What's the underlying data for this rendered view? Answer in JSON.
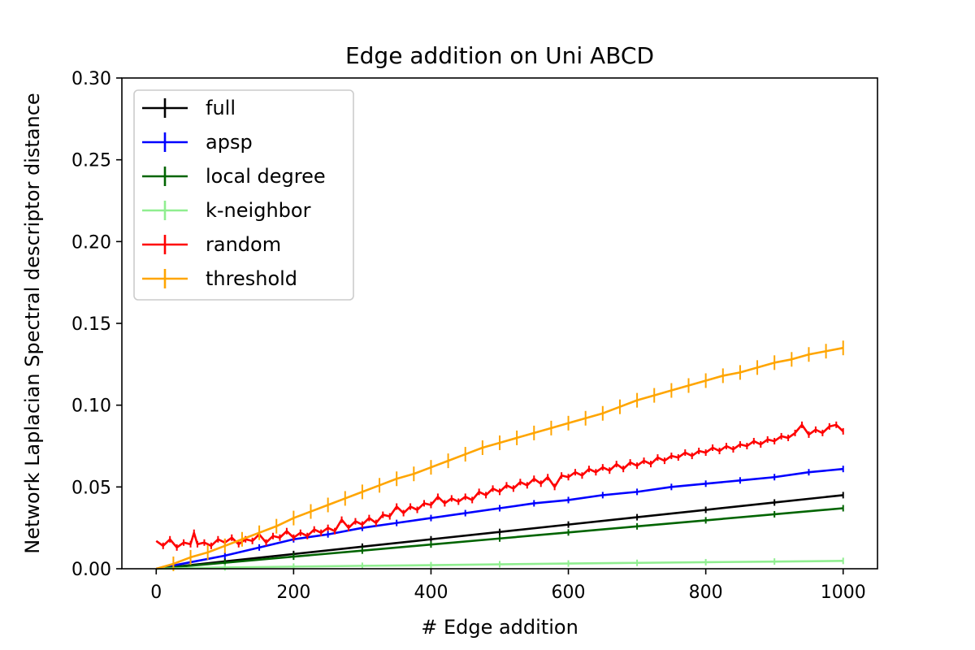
{
  "chart_data": {
    "type": "line",
    "title": "Edge addition on Uni ABCD",
    "xlabel": "# Edge addition",
    "ylabel": "Network Laplacian Spectral descriptor distance",
    "xlim": [
      -50,
      1050
    ],
    "ylim": [
      0,
      0.3
    ],
    "xticks": [
      0,
      200,
      400,
      600,
      800,
      1000
    ],
    "yticks": [
      0,
      0.05,
      0.1,
      0.15,
      0.2,
      0.25,
      0.3
    ],
    "xtick_labels": [
      "0",
      "200",
      "400",
      "600",
      "800",
      "1000"
    ],
    "ytick_labels": [
      "0.00",
      "0.05",
      "0.10",
      "0.15",
      "0.20",
      "0.25",
      "0.30"
    ],
    "grid": false,
    "legend": "top-left",
    "series": [
      {
        "name": "full",
        "color": "#000000",
        "errorbars": "small",
        "points": [
          [
            0,
            0
          ],
          [
            100,
            0.0045
          ],
          [
            200,
            0.009
          ],
          [
            300,
            0.0135
          ],
          [
            400,
            0.018
          ],
          [
            500,
            0.0225
          ],
          [
            600,
            0.027
          ],
          [
            700,
            0.0315
          ],
          [
            800,
            0.036
          ],
          [
            900,
            0.0405
          ],
          [
            1000,
            0.045
          ]
        ]
      },
      {
        "name": "apsp",
        "color": "#0000ff",
        "errorbars": "small",
        "points": [
          [
            0,
            0
          ],
          [
            50,
            0.004
          ],
          [
            100,
            0.008
          ],
          [
            150,
            0.013
          ],
          [
            200,
            0.018
          ],
          [
            250,
            0.021
          ],
          [
            300,
            0.025
          ],
          [
            350,
            0.028
          ],
          [
            400,
            0.031
          ],
          [
            450,
            0.034
          ],
          [
            500,
            0.037
          ],
          [
            550,
            0.04
          ],
          [
            600,
            0.042
          ],
          [
            650,
            0.045
          ],
          [
            700,
            0.047
          ],
          [
            750,
            0.05
          ],
          [
            800,
            0.052
          ],
          [
            850,
            0.054
          ],
          [
            900,
            0.056
          ],
          [
            950,
            0.059
          ],
          [
            1000,
            0.061
          ]
        ]
      },
      {
        "name": "local degree",
        "color": "#006400",
        "errorbars": "small",
        "points": [
          [
            0,
            0
          ],
          [
            100,
            0.0037
          ],
          [
            200,
            0.0074
          ],
          [
            300,
            0.0111
          ],
          [
            400,
            0.0148
          ],
          [
            500,
            0.0185
          ],
          [
            600,
            0.0222
          ],
          [
            700,
            0.0259
          ],
          [
            800,
            0.0296
          ],
          [
            900,
            0.0333
          ],
          [
            1000,
            0.037
          ]
        ]
      },
      {
        "name": "k-neighbor",
        "color": "#90ee90",
        "errorbars": "small",
        "points": [
          [
            0,
            0
          ],
          [
            100,
            0.0008
          ],
          [
            200,
            0.0013
          ],
          [
            300,
            0.0018
          ],
          [
            400,
            0.0022
          ],
          [
            500,
            0.0027
          ],
          [
            600,
            0.0032
          ],
          [
            700,
            0.0036
          ],
          [
            800,
            0.004
          ],
          [
            900,
            0.0044
          ],
          [
            1000,
            0.0048
          ]
        ]
      },
      {
        "name": "random",
        "color": "#ff0000",
        "errorbars": "small",
        "points": [
          [
            0,
            0.017
          ],
          [
            10,
            0.014
          ],
          [
            20,
            0.018
          ],
          [
            30,
            0.013
          ],
          [
            40,
            0.016
          ],
          [
            50,
            0.015
          ],
          [
            55,
            0.022
          ],
          [
            60,
            0.015
          ],
          [
            70,
            0.016
          ],
          [
            80,
            0.014
          ],
          [
            90,
            0.018
          ],
          [
            100,
            0.016
          ],
          [
            110,
            0.019
          ],
          [
            120,
            0.015
          ],
          [
            130,
            0.018
          ],
          [
            140,
            0.017
          ],
          [
            150,
            0.021
          ],
          [
            160,
            0.016
          ],
          [
            170,
            0.02
          ],
          [
            180,
            0.019
          ],
          [
            190,
            0.023
          ],
          [
            200,
            0.019
          ],
          [
            210,
            0.022
          ],
          [
            220,
            0.02
          ],
          [
            230,
            0.024
          ],
          [
            240,
            0.022
          ],
          [
            250,
            0.025
          ],
          [
            260,
            0.023
          ],
          [
            270,
            0.03
          ],
          [
            280,
            0.025
          ],
          [
            290,
            0.029
          ],
          [
            300,
            0.027
          ],
          [
            310,
            0.031
          ],
          [
            320,
            0.028
          ],
          [
            330,
            0.033
          ],
          [
            340,
            0.032
          ],
          [
            350,
            0.038
          ],
          [
            360,
            0.034
          ],
          [
            370,
            0.038
          ],
          [
            380,
            0.036
          ],
          [
            390,
            0.04
          ],
          [
            400,
            0.039
          ],
          [
            410,
            0.044
          ],
          [
            420,
            0.04
          ],
          [
            430,
            0.043
          ],
          [
            440,
            0.041
          ],
          [
            450,
            0.044
          ],
          [
            460,
            0.042
          ],
          [
            470,
            0.047
          ],
          [
            480,
            0.045
          ],
          [
            490,
            0.049
          ],
          [
            500,
            0.047
          ],
          [
            510,
            0.051
          ],
          [
            520,
            0.049
          ],
          [
            530,
            0.053
          ],
          [
            540,
            0.051
          ],
          [
            550,
            0.055
          ],
          [
            560,
            0.052
          ],
          [
            570,
            0.056
          ],
          [
            580,
            0.05
          ],
          [
            590,
            0.057
          ],
          [
            600,
            0.056
          ],
          [
            610,
            0.059
          ],
          [
            620,
            0.057
          ],
          [
            630,
            0.061
          ],
          [
            640,
            0.059
          ],
          [
            650,
            0.062
          ],
          [
            660,
            0.06
          ],
          [
            670,
            0.064
          ],
          [
            680,
            0.061
          ],
          [
            690,
            0.065
          ],
          [
            700,
            0.063
          ],
          [
            710,
            0.066
          ],
          [
            720,
            0.064
          ],
          [
            730,
            0.068
          ],
          [
            740,
            0.066
          ],
          [
            750,
            0.069
          ],
          [
            760,
            0.068
          ],
          [
            770,
            0.071
          ],
          [
            780,
            0.069
          ],
          [
            790,
            0.072
          ],
          [
            800,
            0.071
          ],
          [
            810,
            0.074
          ],
          [
            820,
            0.072
          ],
          [
            830,
            0.075
          ],
          [
            840,
            0.073
          ],
          [
            850,
            0.076
          ],
          [
            860,
            0.075
          ],
          [
            870,
            0.078
          ],
          [
            880,
            0.076
          ],
          [
            890,
            0.079
          ],
          [
            900,
            0.078
          ],
          [
            910,
            0.081
          ],
          [
            920,
            0.08
          ],
          [
            930,
            0.083
          ],
          [
            940,
            0.088
          ],
          [
            950,
            0.082
          ],
          [
            960,
            0.085
          ],
          [
            970,
            0.083
          ],
          [
            980,
            0.087
          ],
          [
            990,
            0.088
          ],
          [
            1000,
            0.084
          ]
        ]
      },
      {
        "name": "threshold",
        "color": "#ffa500",
        "errorbars": "large",
        "points": [
          [
            0,
            0
          ],
          [
            25,
            0.003
          ],
          [
            50,
            0.007
          ],
          [
            75,
            0.01
          ],
          [
            100,
            0.014
          ],
          [
            125,
            0.018
          ],
          [
            150,
            0.022
          ],
          [
            175,
            0.026
          ],
          [
            200,
            0.031
          ],
          [
            225,
            0.035
          ],
          [
            250,
            0.039
          ],
          [
            275,
            0.043
          ],
          [
            300,
            0.047
          ],
          [
            325,
            0.051
          ],
          [
            350,
            0.055
          ],
          [
            375,
            0.058
          ],
          [
            400,
            0.062
          ],
          [
            425,
            0.066
          ],
          [
            450,
            0.07
          ],
          [
            475,
            0.074
          ],
          [
            500,
            0.077
          ],
          [
            525,
            0.08
          ],
          [
            550,
            0.083
          ],
          [
            575,
            0.086
          ],
          [
            600,
            0.089
          ],
          [
            625,
            0.092
          ],
          [
            650,
            0.095
          ],
          [
            675,
            0.099
          ],
          [
            700,
            0.103
          ],
          [
            725,
            0.106
          ],
          [
            750,
            0.109
          ],
          [
            775,
            0.112
          ],
          [
            800,
            0.115
          ],
          [
            825,
            0.118
          ],
          [
            850,
            0.12
          ],
          [
            875,
            0.123
          ],
          [
            900,
            0.126
          ],
          [
            925,
            0.128
          ],
          [
            950,
            0.131
          ],
          [
            975,
            0.133
          ],
          [
            1000,
            0.135
          ]
        ]
      }
    ]
  }
}
